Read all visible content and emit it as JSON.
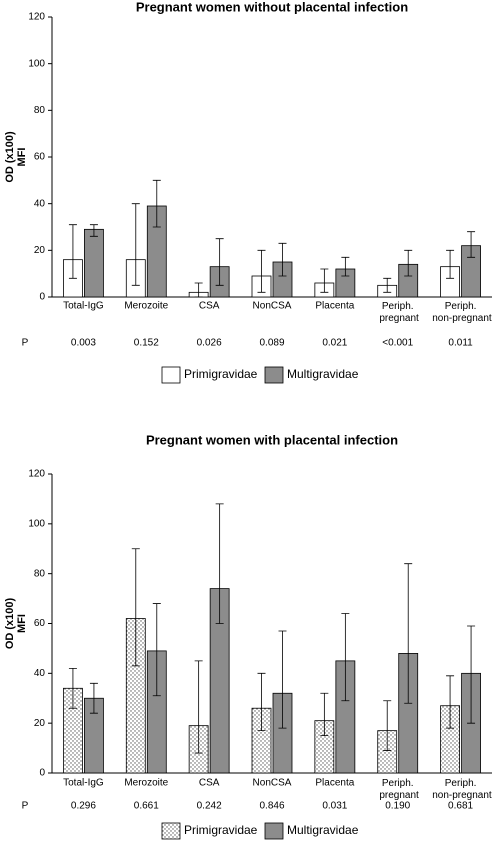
{
  "chart_data": [
    {
      "type": "bar",
      "title": "Pregnant women without placental infection",
      "ylabel": [
        "OD (x100)",
        "MFI"
      ],
      "categories": [
        "Total-IgG",
        "Merozoite",
        "CSA",
        "NonCSA",
        "Placenta",
        "Periph. pregnant",
        "Periph. non-pregnant"
      ],
      "series": [
        {
          "name": "Primigravidae",
          "color": "#ffffff",
          "pattern": "none",
          "values": [
            16,
            16,
            2,
            9,
            6,
            5,
            13
          ],
          "errors": [
            [
              8,
              31
            ],
            [
              5,
              40
            ],
            [
              0,
              6
            ],
            [
              2,
              20
            ],
            [
              2,
              12
            ],
            [
              2,
              8
            ],
            [
              8,
              20
            ]
          ]
        },
        {
          "name": "Multigravidae",
          "color": "#8c8c8c",
          "pattern": "none",
          "values": [
            29,
            39,
            13,
            15,
            12,
            14,
            22
          ],
          "errors": [
            [
              26,
              31
            ],
            [
              30,
              50
            ],
            [
              5,
              25
            ],
            [
              9,
              23
            ],
            [
              9,
              17
            ],
            [
              9,
              20
            ],
            [
              17,
              28
            ]
          ]
        }
      ],
      "p_label": "P",
      "p_values": [
        "0.003",
        "0.152",
        "0.026",
        "0.089",
        "0.021",
        "<0.001",
        "0.011"
      ],
      "ylim": [
        0,
        120
      ],
      "yticks": [
        0,
        20,
        40,
        60,
        80,
        100,
        120
      ],
      "grid": false
    },
    {
      "type": "bar",
      "title": "Pregnant women with placental infection",
      "ylabel": [
        "OD (x100)",
        "MFI"
      ],
      "categories": [
        "Total-IgG",
        "Merozoite",
        "CSA",
        "NonCSA",
        "Placenta",
        "Periph. pregnant",
        "Periph. non-pregnant"
      ],
      "series": [
        {
          "name": "Primigravidae",
          "color": "#ffffff",
          "pattern": "dots",
          "values": [
            34,
            62,
            19,
            26,
            21,
            17,
            27
          ],
          "errors": [
            [
              26,
              42
            ],
            [
              43,
              90
            ],
            [
              8,
              45
            ],
            [
              17,
              40
            ],
            [
              15,
              32
            ],
            [
              9,
              29
            ],
            [
              18,
              39
            ]
          ]
        },
        {
          "name": "Multigravidae",
          "color": "#8c8c8c",
          "pattern": "none",
          "values": [
            30,
            49,
            74,
            32,
            45,
            48,
            40
          ],
          "errors": [
            [
              24,
              36
            ],
            [
              31,
              68
            ],
            [
              60,
              108
            ],
            [
              18,
              57
            ],
            [
              29,
              64
            ],
            [
              28,
              84
            ],
            [
              20,
              59
            ]
          ]
        }
      ],
      "p_label": "P",
      "p_values": [
        "0.296",
        "0.661",
        "0.242",
        "0.846",
        "0.031",
        "0.190",
        "0.681"
      ],
      "ylim": [
        0,
        120
      ],
      "yticks": [
        0,
        20,
        40,
        60,
        80,
        100,
        120
      ],
      "grid": false
    }
  ]
}
